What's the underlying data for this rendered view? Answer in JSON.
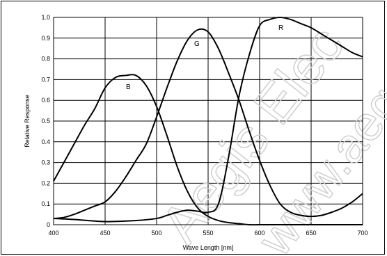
{
  "chart_data": {
    "type": "line",
    "title": "",
    "xlabel": "Wave Length [nm]",
    "ylabel": "Relative Response",
    "xlim": [
      400,
      700
    ],
    "ylim": [
      0,
      1.0
    ],
    "xticks": [
      "400",
      "450",
      "500",
      "550",
      "600",
      "650",
      "700"
    ],
    "yticks": [
      "0",
      "0.1",
      "0.2",
      "0.3",
      "0.4",
      "0.5",
      "0.6",
      "0.7",
      "0.8",
      "0.9",
      "1.0"
    ],
    "grid": true,
    "series": [
      {
        "name": "B",
        "x": [
          400,
          410,
          420,
          430,
          440,
          450,
          460,
          470,
          480,
          490,
          500,
          510,
          520,
          530,
          540,
          550,
          560,
          570,
          580,
          590,
          600,
          620,
          650,
          700
        ],
        "y": [
          0.21,
          0.3,
          0.39,
          0.48,
          0.56,
          0.66,
          0.71,
          0.72,
          0.72,
          0.67,
          0.57,
          0.43,
          0.28,
          0.16,
          0.08,
          0.04,
          0.02,
          0.01,
          0.005,
          0,
          0,
          0,
          0,
          0
        ]
      },
      {
        "name": "G",
        "x": [
          400,
          410,
          420,
          430,
          440,
          450,
          460,
          470,
          480,
          490,
          500,
          510,
          520,
          530,
          540,
          550,
          560,
          570,
          580,
          590,
          600,
          610,
          620,
          630,
          640,
          650,
          660,
          670,
          680,
          690,
          700
        ],
        "y": [
          0.03,
          0.035,
          0.05,
          0.07,
          0.09,
          0.11,
          0.16,
          0.23,
          0.31,
          0.39,
          0.52,
          0.66,
          0.79,
          0.89,
          0.94,
          0.93,
          0.85,
          0.73,
          0.6,
          0.45,
          0.31,
          0.19,
          0.1,
          0.06,
          0.045,
          0.04,
          0.045,
          0.06,
          0.08,
          0.11,
          0.15
        ]
      },
      {
        "name": "R",
        "x": [
          400,
          420,
          450,
          480,
          500,
          510,
          520,
          530,
          540,
          550,
          560,
          570,
          580,
          590,
          600,
          610,
          620,
          630,
          640,
          650,
          660,
          670,
          680,
          690,
          700
        ],
        "y": [
          0.03,
          0.025,
          0.015,
          0.02,
          0.03,
          0.045,
          0.06,
          0.07,
          0.065,
          0.06,
          0.1,
          0.33,
          0.62,
          0.82,
          0.96,
          0.99,
          1.0,
          0.99,
          0.97,
          0.95,
          0.92,
          0.89,
          0.86,
          0.83,
          0.81
        ]
      }
    ]
  },
  "curve_labels": {
    "b": "B",
    "g": "G",
    "r": "R"
  },
  "watermark": {
    "line1": "Aegis Elec",
    "line2": "www.aeg"
  }
}
